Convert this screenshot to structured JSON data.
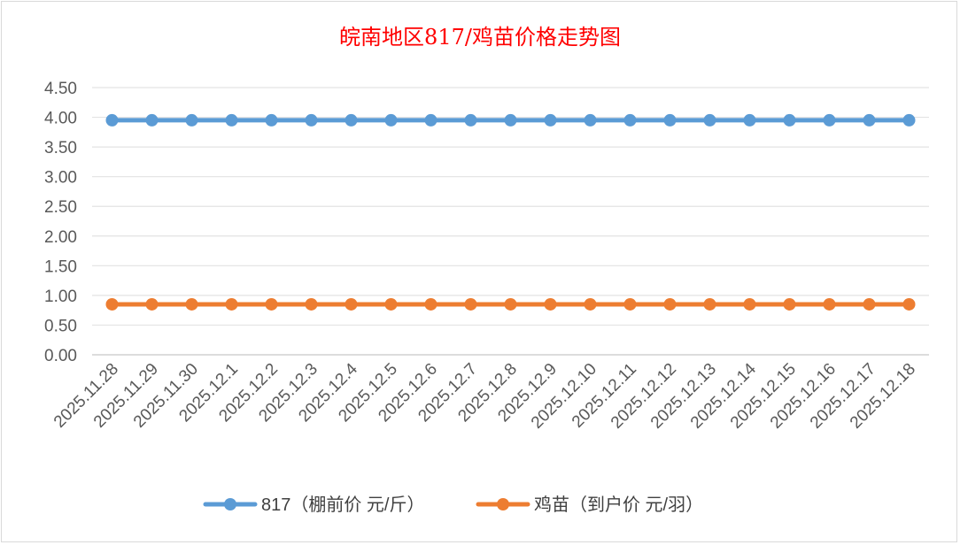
{
  "chart_data": {
    "type": "line",
    "title": "皖南地区817/鸡苗价格走势图",
    "xlabel": "",
    "ylabel": "",
    "categories": [
      "2025.11.28",
      "2025.11.29",
      "2025.11.30",
      "2025.12.1",
      "2025.12.2",
      "2025.12.3",
      "2025.12.4",
      "2025.12.5",
      "2025.12.6",
      "2025.12.7",
      "2025.12.8",
      "2025.12.9",
      "2025.12.10",
      "2025.12.11",
      "2025.12.12",
      "2025.12.13",
      "2025.12.14",
      "2025.12.15",
      "2025.12.16",
      "2025.12.17",
      "2025.12.18"
    ],
    "ylim": [
      0,
      4.5
    ],
    "yticks": [
      "0.00",
      "0.50",
      "1.00",
      "1.50",
      "2.00",
      "2.50",
      "3.00",
      "3.50",
      "4.00",
      "4.50"
    ],
    "grid": true,
    "legend_position": "bottom",
    "series": [
      {
        "name": "817（棚前价 元/斤）",
        "color": "#5b9bd5",
        "values": [
          3.95,
          3.95,
          3.95,
          3.95,
          3.95,
          3.95,
          3.95,
          3.95,
          3.95,
          3.95,
          3.95,
          3.95,
          3.95,
          3.95,
          3.95,
          3.95,
          3.95,
          3.95,
          3.95,
          3.95,
          3.95
        ]
      },
      {
        "name": "鸡苗（到户价 元/羽）",
        "color": "#ed7d31",
        "values": [
          0.85,
          0.85,
          0.85,
          0.85,
          0.85,
          0.85,
          0.85,
          0.85,
          0.85,
          0.85,
          0.85,
          0.85,
          0.85,
          0.85,
          0.85,
          0.85,
          0.85,
          0.85,
          0.85,
          0.85,
          0.85
        ]
      }
    ]
  }
}
